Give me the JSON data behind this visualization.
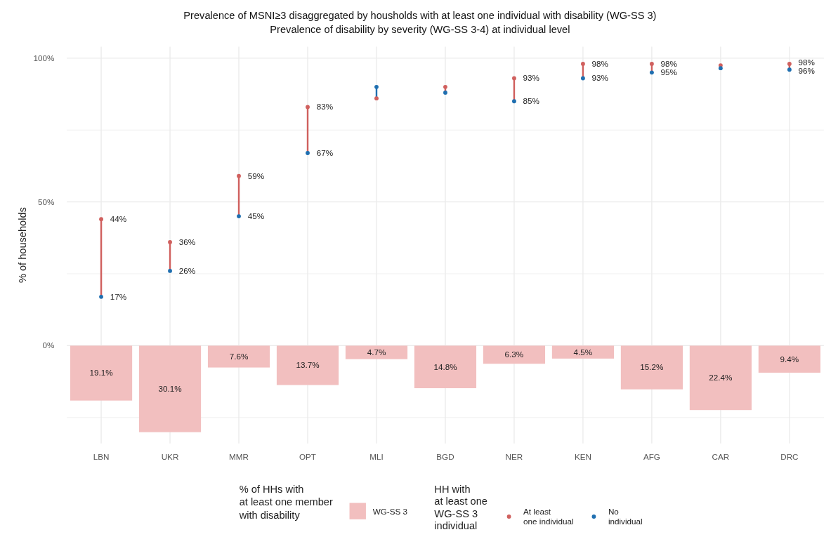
{
  "chart_data": {
    "type": "bar",
    "title": "Prevalence of MSNI≥3 disaggregated by housholds with at least one individual with disability (WG-SS 3)",
    "subtitle": "Prevalence of disability by severity (WG-SS 3-4) at individual level",
    "ylabel": "% of households",
    "categories": [
      "LBN",
      "UKR",
      "MMR",
      "OPT",
      "MLI",
      "BGD",
      "NER",
      "KEN",
      "AFG",
      "CAR",
      "DRC"
    ],
    "ylim": [
      -34,
      104
    ],
    "yticks": [
      {
        "value": -25,
        "label": null
      },
      {
        "value": 0,
        "label": "0%"
      },
      {
        "value": 25,
        "label": null
      },
      {
        "value": 50,
        "label": "50%"
      },
      {
        "value": 75,
        "label": null
      },
      {
        "value": 100,
        "label": "100%"
      }
    ],
    "grid": true,
    "legend": "bottom",
    "marker": "circle",
    "legend_title": "% of HHs with\nat least one member\nwith disability",
    "annotations": [
      "HH with\nat least one\nWG-SS 3\nindividual"
    ],
    "series": [
      {
        "name": "WG-SS 3",
        "type": "bar",
        "color": "#f2bfbf",
        "values": [
          19.1,
          30.1,
          7.6,
          13.7,
          4.7,
          14.8,
          6.3,
          4.5,
          15.2,
          22.4,
          9.4
        ],
        "base": [
          -19.1,
          -30.1,
          -7.6,
          -13.7,
          -4.7,
          -14.8,
          -6.3,
          -4.5,
          -15.2,
          -22.4,
          -9.4
        ],
        "value_labels": [
          "19.1%",
          "30.1%",
          "7.6%",
          "13.7%",
          "4.7%",
          "14.8%",
          "6.3%",
          "4.5%",
          "15.2%",
          "22.4%",
          "9.4%"
        ]
      },
      {
        "name": "At least\none individual",
        "type": "scatter",
        "color": "#d0605e",
        "values": [
          44,
          36,
          59,
          83,
          86,
          90,
          93,
          98,
          98,
          97.5,
          98
        ],
        "value_labels": [
          "44%",
          "36%",
          "59%",
          "83%",
          null,
          null,
          "93%",
          "98%",
          "98%",
          null,
          "98%"
        ]
      },
      {
        "name": "No\nindividual",
        "type": "scatter",
        "color": "#1f6fb0",
        "values": [
          17,
          26,
          45,
          67,
          90,
          88,
          85,
          93,
          95,
          96.5,
          96
        ],
        "value_labels": [
          "17%",
          "26%",
          "45%",
          "67%",
          null,
          null,
          "85%",
          "93%",
          "95%",
          null,
          "96%"
        ]
      }
    ]
  }
}
